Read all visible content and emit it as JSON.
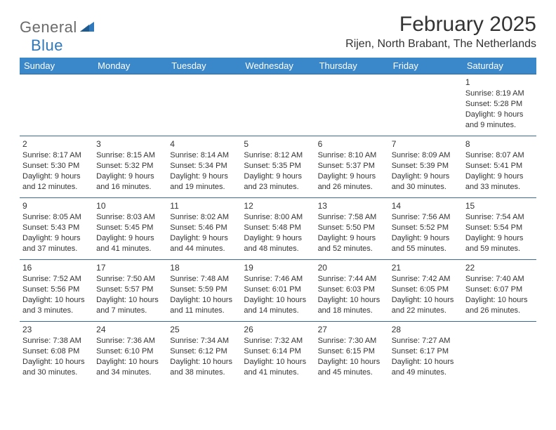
{
  "logo": {
    "text1": "General",
    "text2": "Blue"
  },
  "header": {
    "month_title": "February 2025",
    "location": "Rijen, North Brabant, The Netherlands"
  },
  "colors": {
    "header_bg": "#3a87c9",
    "header_text": "#ffffff",
    "cell_border": "#3a6a96",
    "body_text": "#333333",
    "logo_gray": "#6b6b6b",
    "logo_blue": "#2f78bb",
    "page_bg": "#ffffff"
  },
  "typography": {
    "month_title_fontsize": 30,
    "location_fontsize": 16,
    "day_header_fontsize": 13,
    "cell_fontsize": 11
  },
  "day_headers": [
    "Sunday",
    "Monday",
    "Tuesday",
    "Wednesday",
    "Thursday",
    "Friday",
    "Saturday"
  ],
  "calendar": {
    "type": "table",
    "columns": 7,
    "rows": 5,
    "first_weekday_index": 6,
    "days": [
      {
        "n": 1,
        "sunrise": "8:19 AM",
        "sunset": "5:28 PM",
        "daylight": "9 hours and 9 minutes."
      },
      {
        "n": 2,
        "sunrise": "8:17 AM",
        "sunset": "5:30 PM",
        "daylight": "9 hours and 12 minutes."
      },
      {
        "n": 3,
        "sunrise": "8:15 AM",
        "sunset": "5:32 PM",
        "daylight": "9 hours and 16 minutes."
      },
      {
        "n": 4,
        "sunrise": "8:14 AM",
        "sunset": "5:34 PM",
        "daylight": "9 hours and 19 minutes."
      },
      {
        "n": 5,
        "sunrise": "8:12 AM",
        "sunset": "5:35 PM",
        "daylight": "9 hours and 23 minutes."
      },
      {
        "n": 6,
        "sunrise": "8:10 AM",
        "sunset": "5:37 PM",
        "daylight": "9 hours and 26 minutes."
      },
      {
        "n": 7,
        "sunrise": "8:09 AM",
        "sunset": "5:39 PM",
        "daylight": "9 hours and 30 minutes."
      },
      {
        "n": 8,
        "sunrise": "8:07 AM",
        "sunset": "5:41 PM",
        "daylight": "9 hours and 33 minutes."
      },
      {
        "n": 9,
        "sunrise": "8:05 AM",
        "sunset": "5:43 PM",
        "daylight": "9 hours and 37 minutes."
      },
      {
        "n": 10,
        "sunrise": "8:03 AM",
        "sunset": "5:45 PM",
        "daylight": "9 hours and 41 minutes."
      },
      {
        "n": 11,
        "sunrise": "8:02 AM",
        "sunset": "5:46 PM",
        "daylight": "9 hours and 44 minutes."
      },
      {
        "n": 12,
        "sunrise": "8:00 AM",
        "sunset": "5:48 PM",
        "daylight": "9 hours and 48 minutes."
      },
      {
        "n": 13,
        "sunrise": "7:58 AM",
        "sunset": "5:50 PM",
        "daylight": "9 hours and 52 minutes."
      },
      {
        "n": 14,
        "sunrise": "7:56 AM",
        "sunset": "5:52 PM",
        "daylight": "9 hours and 55 minutes."
      },
      {
        "n": 15,
        "sunrise": "7:54 AM",
        "sunset": "5:54 PM",
        "daylight": "9 hours and 59 minutes."
      },
      {
        "n": 16,
        "sunrise": "7:52 AM",
        "sunset": "5:56 PM",
        "daylight": "10 hours and 3 minutes."
      },
      {
        "n": 17,
        "sunrise": "7:50 AM",
        "sunset": "5:57 PM",
        "daylight": "10 hours and 7 minutes."
      },
      {
        "n": 18,
        "sunrise": "7:48 AM",
        "sunset": "5:59 PM",
        "daylight": "10 hours and 11 minutes."
      },
      {
        "n": 19,
        "sunrise": "7:46 AM",
        "sunset": "6:01 PM",
        "daylight": "10 hours and 14 minutes."
      },
      {
        "n": 20,
        "sunrise": "7:44 AM",
        "sunset": "6:03 PM",
        "daylight": "10 hours and 18 minutes."
      },
      {
        "n": 21,
        "sunrise": "7:42 AM",
        "sunset": "6:05 PM",
        "daylight": "10 hours and 22 minutes."
      },
      {
        "n": 22,
        "sunrise": "7:40 AM",
        "sunset": "6:07 PM",
        "daylight": "10 hours and 26 minutes."
      },
      {
        "n": 23,
        "sunrise": "7:38 AM",
        "sunset": "6:08 PM",
        "daylight": "10 hours and 30 minutes."
      },
      {
        "n": 24,
        "sunrise": "7:36 AM",
        "sunset": "6:10 PM",
        "daylight": "10 hours and 34 minutes."
      },
      {
        "n": 25,
        "sunrise": "7:34 AM",
        "sunset": "6:12 PM",
        "daylight": "10 hours and 38 minutes."
      },
      {
        "n": 26,
        "sunrise": "7:32 AM",
        "sunset": "6:14 PM",
        "daylight": "10 hours and 41 minutes."
      },
      {
        "n": 27,
        "sunrise": "7:30 AM",
        "sunset": "6:15 PM",
        "daylight": "10 hours and 45 minutes."
      },
      {
        "n": 28,
        "sunrise": "7:27 AM",
        "sunset": "6:17 PM",
        "daylight": "10 hours and 49 minutes."
      }
    ]
  },
  "labels": {
    "sunrise_prefix": "Sunrise: ",
    "sunset_prefix": "Sunset: ",
    "daylight_prefix": "Daylight: "
  }
}
